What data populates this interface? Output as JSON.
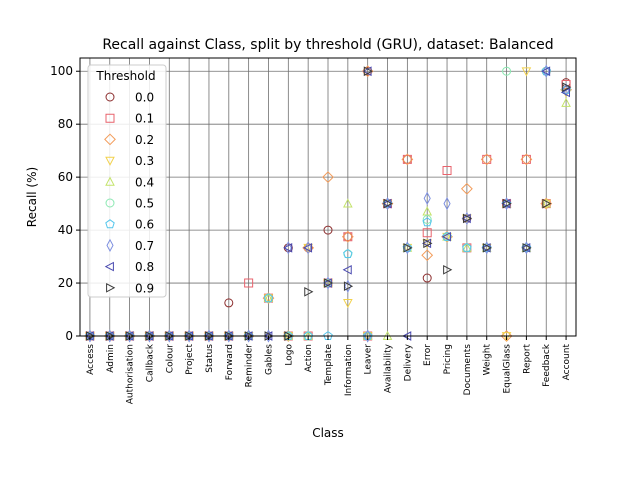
{
  "chart_data": {
    "type": "scatter",
    "title": "Recall against Class, split by threshold (GRU), dataset: Balanced",
    "xlabel": "Class",
    "ylabel": "Recall (%)",
    "ylim": [
      0,
      105
    ],
    "yticks": [
      0,
      20,
      40,
      60,
      80,
      100
    ],
    "grid": true,
    "legend": {
      "title": "Threshold",
      "placement": "top-left"
    },
    "categories": [
      "Access",
      "Admin",
      "Authorisation",
      "Callback",
      "Colour",
      "Project",
      "Status",
      "Forward",
      "Reminder",
      "Gables",
      "Logo",
      "Action",
      "Template",
      "Information",
      "Leaver",
      "Availability",
      "Delivery",
      "Error",
      "Pricing",
      "Documents",
      "Weight",
      "EqualGlass",
      "Report",
      "Feedback",
      "Account"
    ],
    "series": [
      {
        "name": "0.0",
        "marker": "circle",
        "color": "#8c2d2d",
        "values": [
          0,
          0,
          0,
          0,
          0,
          0,
          0,
          12.5,
          0,
          14.3,
          33.3,
          33.3,
          40,
          37.5,
          100,
          50,
          66.7,
          21.9,
          37.5,
          44.4,
          33.3,
          50,
          33.3,
          100,
          95.7
        ]
      },
      {
        "name": "0.1",
        "marker": "square",
        "color": "#e8636d",
        "values": [
          0,
          0,
          0,
          0,
          0,
          0,
          0,
          0,
          20,
          14.3,
          0,
          0,
          20,
          37.5,
          0,
          50,
          66.7,
          39,
          62.5,
          33.3,
          66.7,
          50,
          66.7,
          50,
          95
        ]
      },
      {
        "name": "0.2",
        "marker": "diamond",
        "color": "#f39c5a",
        "values": [
          0,
          0,
          0,
          0,
          0,
          0,
          0,
          0,
          0,
          14.3,
          0,
          33.3,
          60,
          37.5,
          100,
          50,
          66.7,
          30.5,
          37.5,
          55.6,
          66.7,
          0,
          66.7,
          50,
          93
        ]
      },
      {
        "name": "0.3",
        "marker": "triangle-down",
        "color": "#f2d14b",
        "values": [
          0,
          0,
          0,
          0,
          0,
          0,
          0,
          0,
          0,
          14.3,
          0,
          33.3,
          20,
          12.5,
          0,
          50,
          33.3,
          35,
          37.5,
          44.4,
          33.3,
          0,
          100,
          50,
          92
        ]
      },
      {
        "name": "0.4",
        "marker": "triangle-up",
        "color": "#c3e36a",
        "values": [
          0,
          0,
          0,
          0,
          0,
          0,
          0,
          0,
          0,
          14.3,
          0,
          0,
          20,
          50,
          0,
          0,
          33.3,
          47,
          37.5,
          33.3,
          33.3,
          50,
          33.3,
          50,
          88
        ]
      },
      {
        "name": "0.5",
        "marker": "circle",
        "color": "#8be8b2",
        "values": [
          0,
          0,
          0,
          0,
          0,
          0,
          0,
          0,
          0,
          14.3,
          0,
          0,
          20,
          31,
          0,
          50,
          33.3,
          44,
          37.5,
          33.3,
          33.3,
          100,
          33.3,
          100,
          93
        ]
      },
      {
        "name": "0.6",
        "marker": "pentagon",
        "color": "#55c6ec",
        "values": [
          0,
          0,
          0,
          0,
          0,
          0,
          0,
          0,
          0,
          14.3,
          0,
          0,
          0,
          31,
          0,
          50,
          33.3,
          43,
          37.5,
          33.3,
          33.3,
          50,
          33.3,
          100,
          93
        ]
      },
      {
        "name": "0.7",
        "marker": "thin-diamond",
        "color": "#7d8fe0",
        "values": [
          0,
          0,
          0,
          0,
          0,
          0,
          0,
          0,
          0,
          0,
          33.3,
          33.3,
          20,
          18.8,
          0,
          50,
          33.3,
          52,
          50,
          44.4,
          33.3,
          50,
          33.3,
          100,
          93
        ]
      },
      {
        "name": "0.8",
        "marker": "triangle-left",
        "color": "#4a4ab0",
        "values": [
          0,
          0,
          0,
          0,
          0,
          0,
          0,
          0,
          0,
          0,
          33.3,
          33.3,
          20,
          25,
          100,
          50,
          0,
          35,
          37.5,
          44.4,
          33.3,
          50,
          33.3,
          100,
          92
        ]
      },
      {
        "name": "0.9",
        "marker": "triangle-right",
        "color": "#3a3a3a",
        "values": [
          0,
          0,
          0,
          0,
          0,
          0,
          0,
          0,
          0,
          0,
          0,
          16.7,
          20,
          18.8,
          100,
          50,
          33.3,
          35,
          25,
          44.4,
          33.3,
          50,
          33.3,
          50,
          94
        ]
      }
    ]
  }
}
